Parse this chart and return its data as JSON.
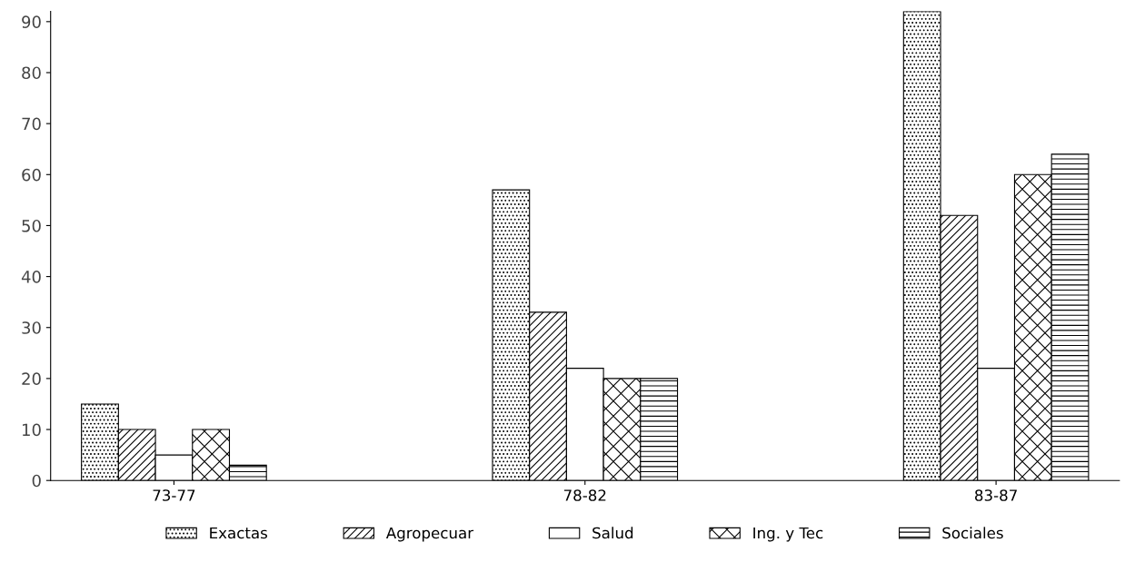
{
  "chart_data": {
    "type": "bar",
    "categories": [
      "73-77",
      "78-82",
      "83-87"
    ],
    "series": [
      {
        "name": "Exactas",
        "color": "#000000",
        "values": [
          15,
          57,
          92
        ]
      },
      {
        "name": "Agropecuar",
        "color": "#000000",
        "values": [
          10,
          33,
          52
        ]
      },
      {
        "name": "Salud",
        "color": "#ffffff",
        "values": [
          5,
          22,
          22
        ]
      },
      {
        "name": "Ing. y Tec",
        "color": "#000000",
        "values": [
          10,
          20,
          60
        ]
      },
      {
        "name": "Sociales",
        "color": "#000000",
        "values": [
          3,
          20,
          64
        ]
      }
    ],
    "ylim": [
      0,
      92
    ],
    "yticks": [
      0,
      10,
      20,
      30,
      40,
      50,
      60,
      70,
      80,
      90
    ],
    "grid": false,
    "legend": "bottom"
  }
}
